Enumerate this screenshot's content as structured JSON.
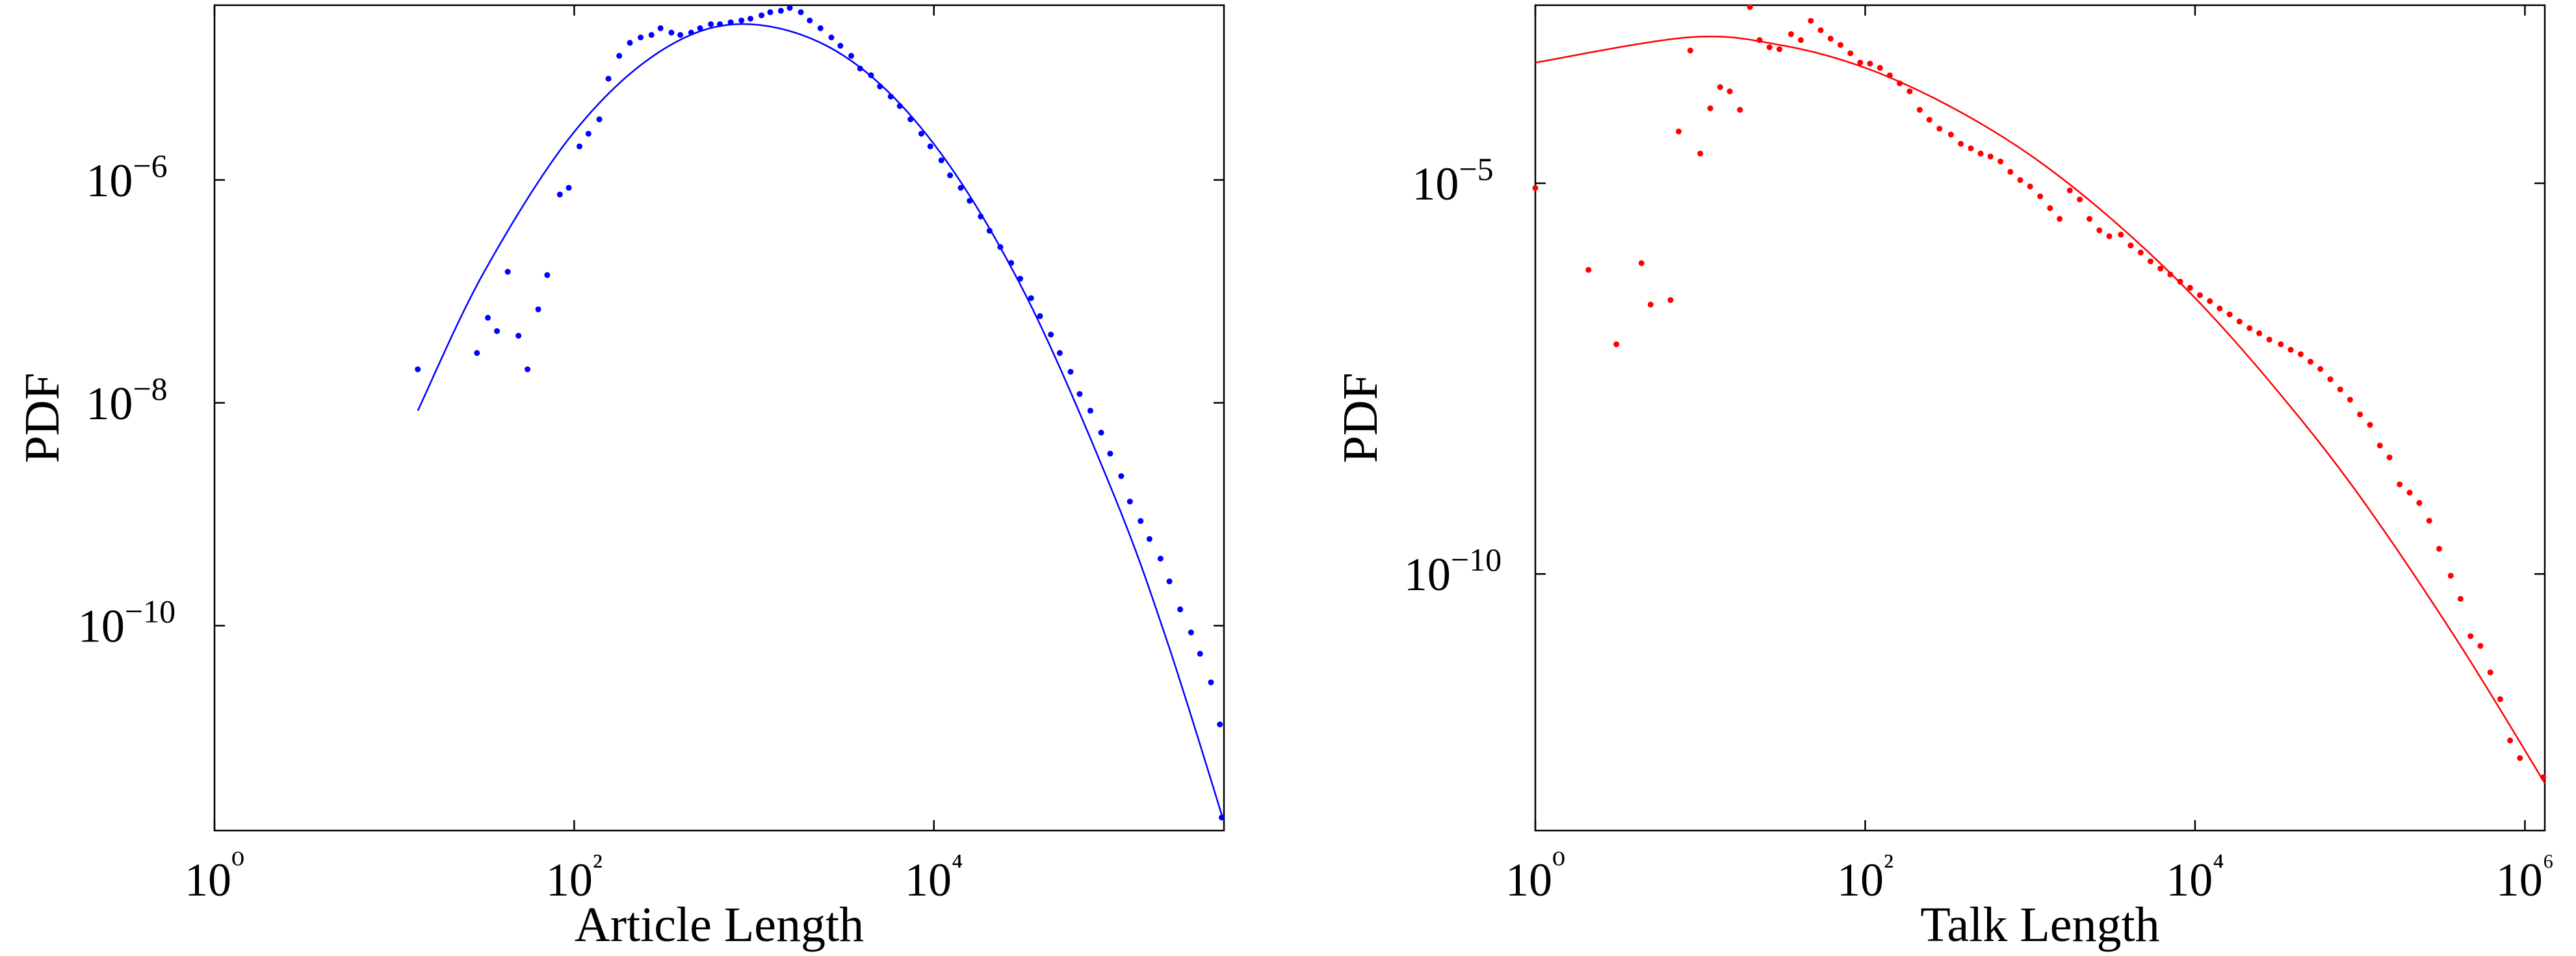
{
  "chart_data": [
    {
      "type": "scatter",
      "xlabel": "Article Length",
      "ylabel": "PDF",
      "log_x": true,
      "log_y": true,
      "xlim": [
        1,
        410000
      ],
      "ylim": [
        1.45e-12,
        3.7e-05
      ],
      "xticks": [
        {
          "value": 1,
          "label": "10⁰"
        },
        {
          "value": 100,
          "label": "10²"
        },
        {
          "value": 10000,
          "label": "10⁴"
        }
      ],
      "yticks": [
        {
          "value": 1e-10,
          "label": "10−10"
        },
        {
          "value": 1e-08,
          "label": "10−8"
        },
        {
          "value": 1e-06,
          "label": "10−6"
        }
      ],
      "series": [
        {
          "color": "#0000ff",
          "mode": "markers",
          "x": [
            13.5,
            28.8,
            33.1,
            37.2,
            42.7,
            49.0,
            55.0,
            63.1,
            70.8,
            83.2,
            93.3,
            107,
            120,
            138,
            155,
            178,
            204,
            234,
            269,
            302,
            347,
            389,
            447,
            501,
            575,
            646,
            741,
            851,
            955,
            1100,
            1230,
            1410,
            1580,
            1820,
            2040,
            2340,
            2690,
            3020,
            3470,
            3890,
            4470,
            5010,
            5750,
            6460,
            7410,
            8510,
            9550,
            11000,
            12300,
            14100,
            15800,
            18200,
            20400,
            23400,
            26900,
            30200,
            34700,
            38900,
            44700,
            50100,
            57500,
            64600,
            74100,
            85100,
            95500,
            110000,
            123000,
            141000,
            158000,
            182000,
            204000,
            234000,
            269000,
            302000,
            347000,
            389000,
            398000
          ],
          "values": [
            2e-08,
            2.8e-08,
            5.8e-08,
            4.4e-08,
            1.5e-07,
            4e-08,
            2e-08,
            6.9e-08,
            1.4e-07,
            7.4e-07,
            8.5e-07,
            2e-06,
            2.6e-06,
            3.5e-06,
            8.1e-06,
            1.3e-05,
            1.7e-05,
            1.9e-05,
            2e-05,
            2.3e-05,
            2.1e-05,
            2e-05,
            2.1e-05,
            2.3e-05,
            2.5e-05,
            2.5e-05,
            2.6e-05,
            2.7e-05,
            2.8e-05,
            3e-05,
            3.2e-05,
            3.3e-05,
            3.5e-05,
            3.2e-05,
            2.7e-05,
            2.3e-05,
            1.9e-05,
            1.6e-05,
            1.3e-05,
            1e-05,
            8.7e-06,
            6.9e-06,
            5.6e-06,
            4.6e-06,
            3.5e-06,
            2.6e-06,
            2e-06,
            1.5e-06,
            1.1e-06,
            8.5e-07,
            6.5e-07,
            4.7e-07,
            3.5e-07,
            2.5e-07,
            1.8e-07,
            1.3e-07,
            8.7e-08,
            6e-08,
            4.1e-08,
            2.8e-08,
            1.9e-08,
            1.2e-08,
            8.5e-09,
            5.4e-09,
            3.5e-09,
            2.2e-09,
            1.3e-09,
            8.7e-10,
            6e-10,
            4e-10,
            2.5e-10,
            1.4e-10,
            8.7e-11,
            5.6e-11,
            3.1e-11,
            1.3e-11,
            1.9e-12
          ]
        },
        {
          "color": "#0000ff",
          "mode": "line",
          "x": [
            13.5,
            31.6,
            100,
            316,
            933,
            3160,
            10000,
            31600,
            100000,
            200000,
            407000
          ],
          "values": [
            8.5e-09,
            1.5e-07,
            2.7e-06,
            1.5e-05,
            2.5e-05,
            1.3e-05,
            2.1e-06,
            1e-07,
            1.5e-09,
            6.9e-11,
            1.8e-12
          ]
        }
      ]
    },
    {
      "type": "scatter",
      "xlabel": "Talk Length",
      "ylabel": "PDF",
      "log_x": true,
      "log_y": true,
      "xlim": [
        1,
        1320000
      ],
      "ylim": [
        5.2e-14,
        0.0019
      ],
      "xticks": [
        {
          "value": 1,
          "label": "10⁰"
        },
        {
          "value": 100,
          "label": "10²"
        },
        {
          "value": 10000,
          "label": "10⁴"
        },
        {
          "value": 1000000,
          "label": "10⁶"
        }
      ],
      "yticks": [
        {
          "value": 1e-10,
          "label": "10−10"
        },
        {
          "value": 1e-05,
          "label": "10−5"
        }
      ],
      "series": [
        {
          "color": "#ff0000",
          "mode": "markers",
          "x": [
            1,
            2.1,
            3.1,
            4.4,
            5.0,
            6.6,
            7.4,
            8.7,
            10,
            11.5,
            13.2,
            15.1,
            17.4,
            20,
            22.9,
            26.3,
            30.2,
            35.5,
            40.7,
            46.8,
            53.7,
            61.7,
            70.8,
            81.3,
            93.3,
            107,
            123,
            141,
            162,
            186,
            214,
            245,
            282,
            331,
            380,
            437,
            501,
            575,
            661,
            759,
            871,
            1000,
            1150,
            1320,
            1510,
            1740,
            2000,
            2290,
            2630,
            3020,
            3550,
            4070,
            4680,
            5370,
            6170,
            7080,
            8130,
            9330,
            10700,
            12300,
            14100,
            16200,
            18600,
            21400,
            24500,
            28200,
            33100,
            38000,
            43700,
            50100,
            57500,
            66100,
            75900,
            87100,
            100000,
            115000,
            132000,
            151000,
            174000,
            200000,
            229000,
            263000,
            302000,
            355000,
            407000,
            468000,
            537000,
            617000,
            708000,
            813000,
            933000,
            1290000
          ],
          "values": [
            8.7e-06,
            7.8e-07,
            8.7e-08,
            9.5e-07,
            2.8e-07,
            3.2e-07,
            4.6e-05,
            0.0005,
            2.4e-05,
            9.1e-05,
            0.00017,
            0.00015,
            8.7e-05,
            0.0018,
            0.00068,
            0.00055,
            0.00052,
            0.00081,
            0.00068,
            0.0012,
            0.00091,
            0.00071,
            0.00059,
            0.00046,
            0.00035,
            0.00034,
            0.0003,
            0.00024,
            0.00019,
            0.00015,
            8.7e-05,
            6.5e-05,
            5e-05,
            4.2e-05,
            3.2e-05,
            2.8e-05,
            2.4e-05,
            2.2e-05,
            1.9e-05,
            1.4e-05,
            1.1e-05,
            9.1e-06,
            6.8e-06,
            4.8e-06,
            3.5e-06,
            8.1e-06,
            6.2e-06,
            3.5e-06,
            2.5e-06,
            2.1e-06,
            2.2e-06,
            1.6e-06,
            1.3e-06,
            1e-06,
            8.1e-07,
            6.8e-07,
            5.5e-07,
            4.6e-07,
            3.7e-07,
            3.1e-07,
            2.5e-07,
            2.1e-07,
            1.7e-07,
            1.4e-07,
            1.2e-07,
            1e-07,
            8.7e-08,
            7.4e-08,
            6.5e-08,
            5.2e-08,
            4.2e-08,
            3.1e-08,
            2.3e-08,
            1.7e-08,
            1.1e-08,
            8.1e-09,
            4.4e-09,
            3.1e-09,
            1.4e-09,
            1.1e-09,
            8.1e-10,
            4.8e-10,
            2.1e-10,
            9.5e-11,
            4.8e-11,
            1.6e-11,
            1.2e-11,
            5.5e-12,
            2.5e-12,
            7.4e-13,
            4.4e-13,
            2.5e-13
          ]
        },
        {
          "color": "#ff0000",
          "mode": "line",
          "x": [
            1,
            8.71,
            31.6,
            100,
            316,
            1000,
            3160,
            10000,
            31600,
            100000,
            398000,
            1320000
          ],
          "values": [
            0.00035,
            0.00074,
            0.00058,
            0.0003,
            0.0001,
            2.3e-05,
            3.4e-06,
            3.4e-07,
            2.2e-08,
            9.8e-10,
            1.3e-11,
            2.1e-13
          ]
        }
      ]
    }
  ]
}
